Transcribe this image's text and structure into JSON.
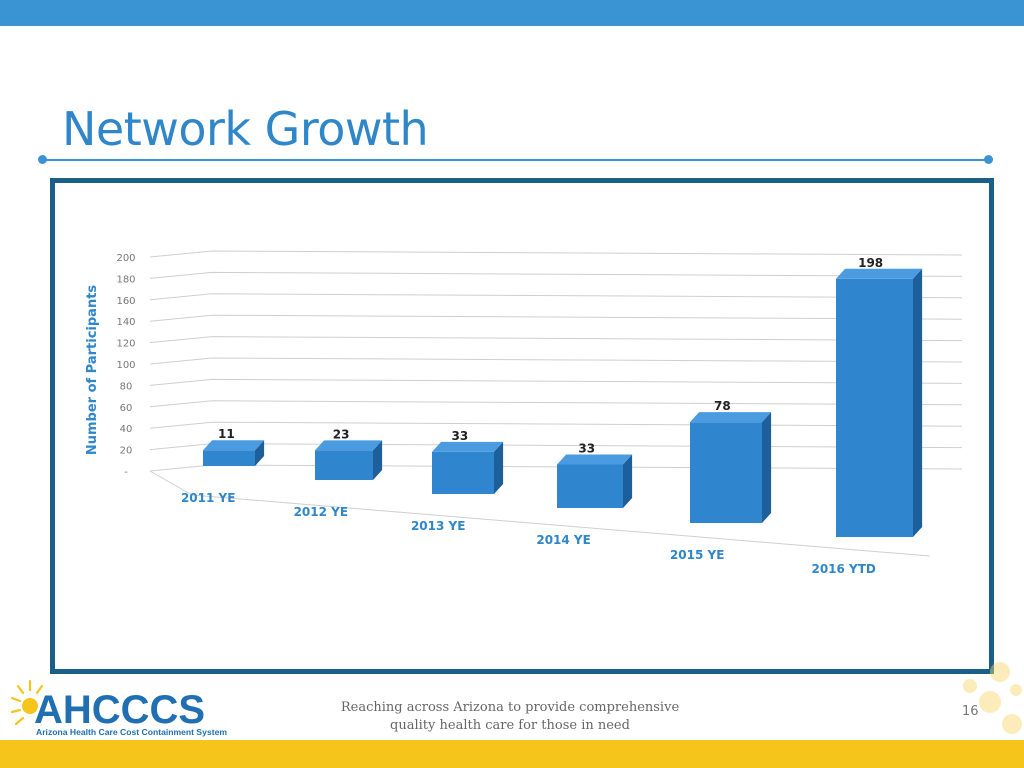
{
  "slide": {
    "title": "Network Growth",
    "footer_line1": "Reaching across Arizona to provide comprehensive",
    "footer_line2": "quality health care for those in need",
    "page_number": "16"
  },
  "logo": {
    "name": "AHCCCS",
    "tagline": "Arizona Health Care Cost Containment System",
    "colors": {
      "primary": "#1f6fb2",
      "sun": "#f5c51c"
    }
  },
  "colors": {
    "bar": "#2f86cf",
    "bar_top": "#4b9be0",
    "bar_side": "#1c5f9a",
    "accent": "#3a93d3",
    "frame": "#1a5f86"
  },
  "chart_data": {
    "type": "bar",
    "categories": [
      "2011 YE",
      "2012 YE",
      "2013 YE",
      "2014 YE",
      "2015 YE",
      "2016 YTD"
    ],
    "values": [
      11,
      23,
      33,
      33,
      78,
      198
    ],
    "data_labels": [
      "11",
      "23",
      "33",
      "33",
      "78",
      "198"
    ],
    "ylabel": "Number of Participants",
    "ylim": [
      0,
      200
    ],
    "yticks": [
      0,
      20,
      40,
      60,
      80,
      100,
      120,
      140,
      160,
      180,
      200
    ],
    "ytick_labels": [
      "-",
      "20",
      "40",
      "60",
      "80",
      "100",
      "120",
      "140",
      "160",
      "180",
      "200"
    ],
    "grid": true,
    "legend": "none"
  }
}
